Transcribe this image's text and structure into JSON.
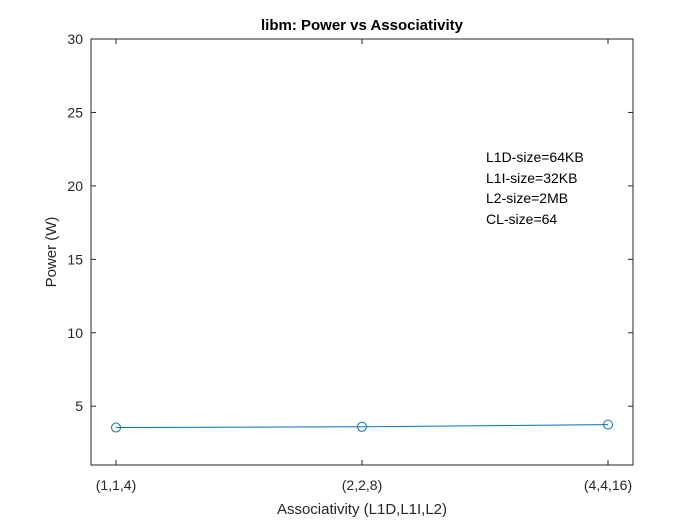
{
  "chart_data": {
    "type": "line",
    "title": "libm: Power vs Associativity",
    "xlabel": "Associativity (L1D,L1I,L2)",
    "ylabel": "Power (W)",
    "categories": [
      "(1,1,4)",
      "(2,2,8)",
      "(4,4,16)"
    ],
    "series": [
      {
        "values": [
          3.55,
          3.6,
          3.75
        ],
        "color": "#0072BD",
        "marker": "circle"
      }
    ],
    "ylim": [
      1,
      30
    ],
    "yticks": [
      5,
      10,
      15,
      20,
      25,
      30
    ],
    "grid": false,
    "annotation": [
      "L1D-size=64KB",
      "L1I-size=32KB",
      "L2-size=2MB",
      "CL-size=64"
    ]
  }
}
